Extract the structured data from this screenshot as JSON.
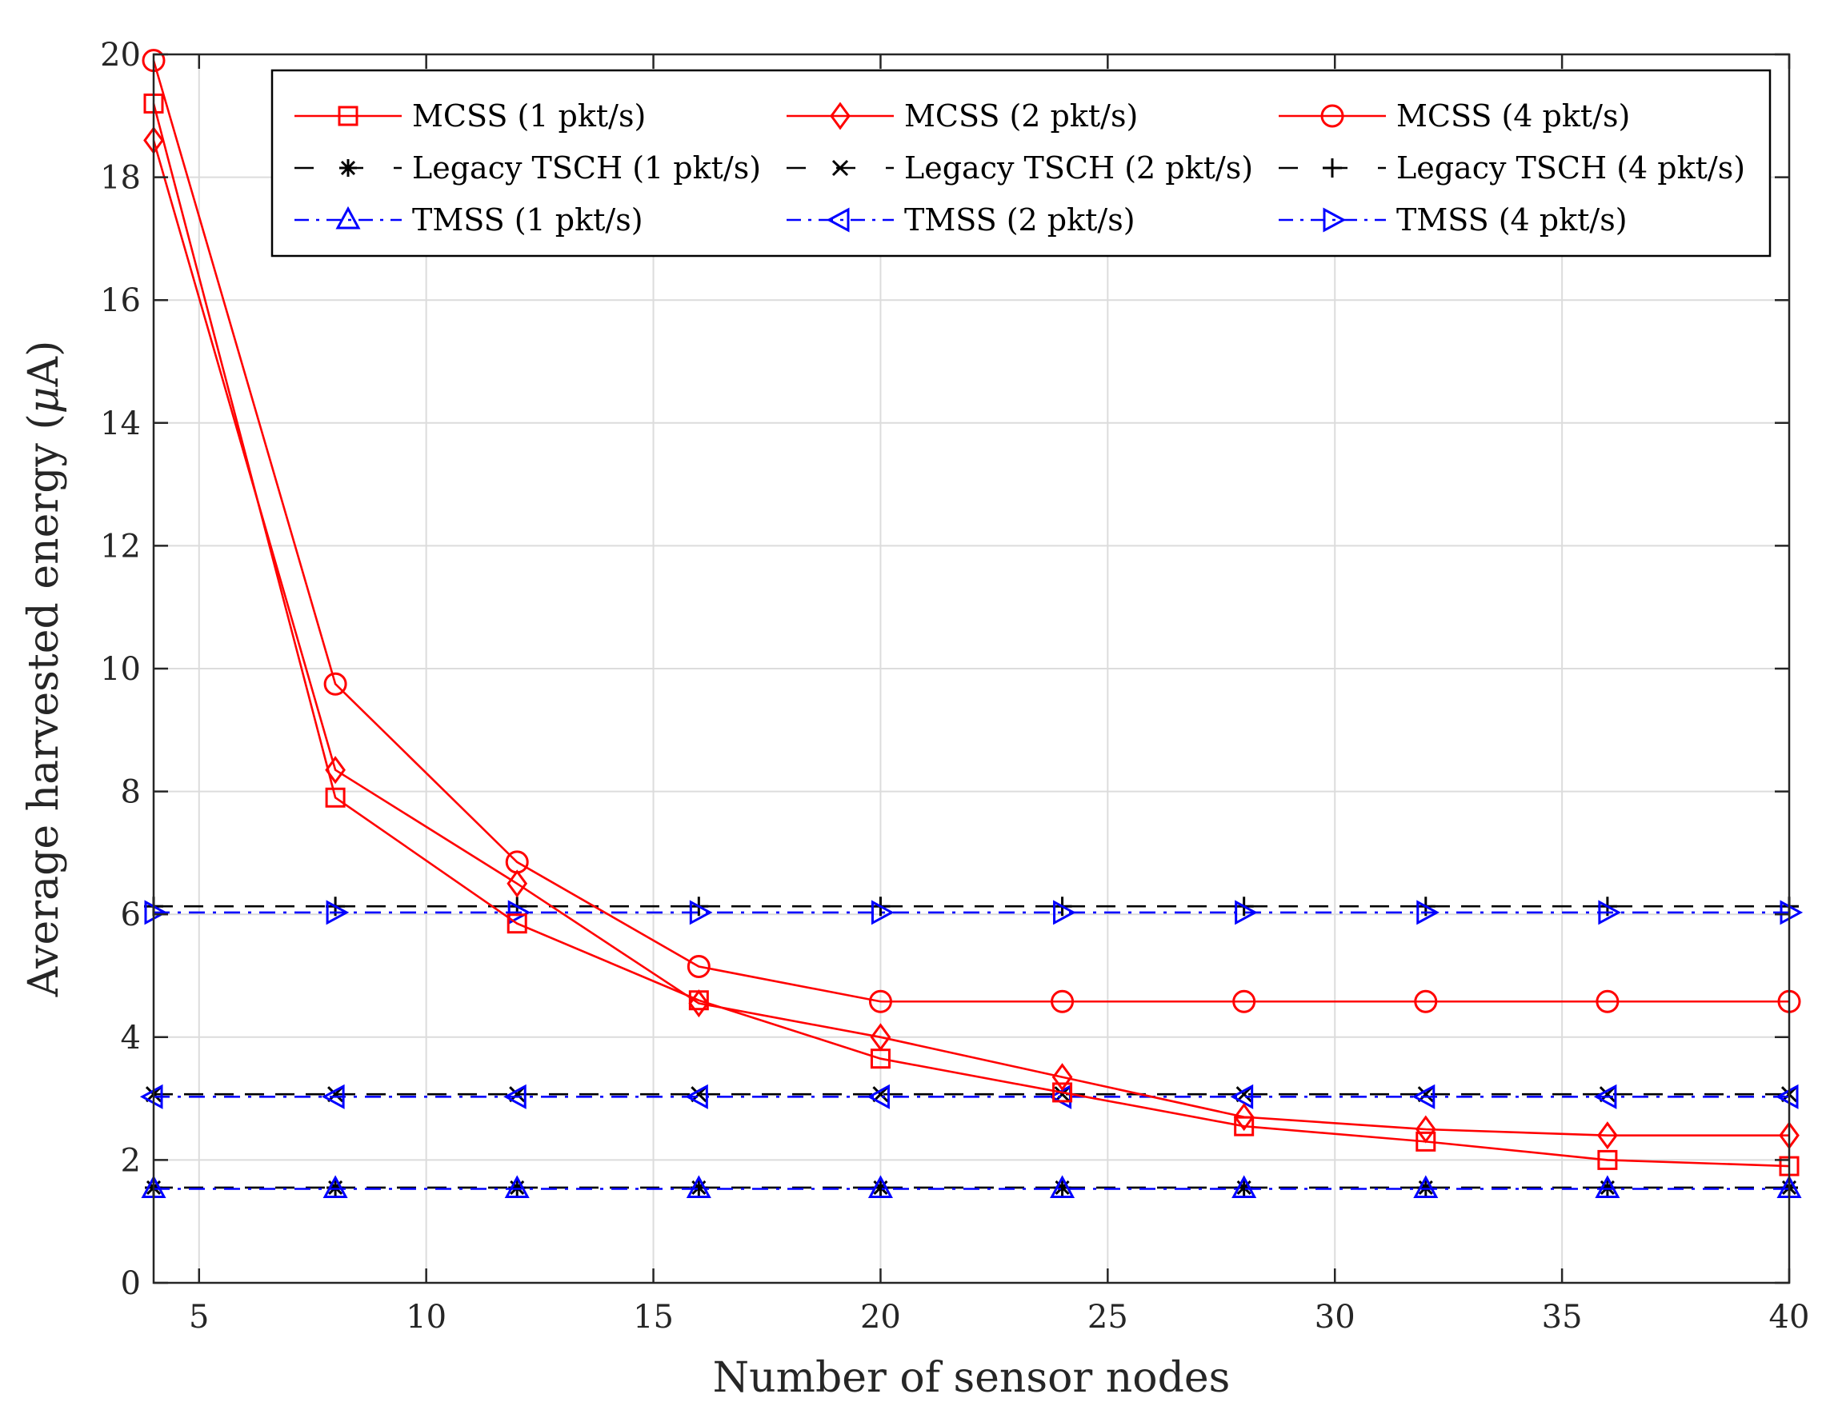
{
  "chart_data": {
    "type": "line",
    "xlabel": "Number of sensor nodes",
    "ylabel_prefix": "Average harvested energy (",
    "ylabel_mu": "μ",
    "ylabel_suffix": "A)",
    "xlim": [
      4,
      40
    ],
    "ylim": [
      0,
      20
    ],
    "xticks": [
      5,
      10,
      15,
      20,
      25,
      30,
      35,
      40
    ],
    "yticks": [
      0,
      2,
      4,
      6,
      8,
      10,
      12,
      14,
      16,
      18,
      20
    ],
    "grid": true,
    "legend_position": "top-right",
    "x": [
      4,
      8,
      12,
      16,
      20,
      24,
      28,
      32,
      36,
      40
    ],
    "series": [
      {
        "name": "MCSS (1 pkt/s)",
        "color": "#ff0000",
        "line": "solid",
        "marker": "square",
        "values": [
          19.2,
          7.9,
          5.85,
          4.6,
          3.65,
          3.1,
          2.55,
          2.3,
          2.0,
          1.9
        ]
      },
      {
        "name": "MCSS (2 pkt/s)",
        "color": "#ff0000",
        "line": "solid",
        "marker": "diamond",
        "values": [
          18.6,
          8.35,
          6.5,
          4.55,
          4.0,
          3.35,
          2.7,
          2.5,
          2.4,
          2.4
        ]
      },
      {
        "name": "MCSS (4 pkt/s)",
        "color": "#ff0000",
        "line": "solid",
        "marker": "circle",
        "values": [
          19.9,
          9.75,
          6.85,
          5.15,
          4.58,
          4.58,
          4.58,
          4.58,
          4.58,
          4.58
        ]
      },
      {
        "name": "Legacy TSCH (1 pkt/s)",
        "color": "#000000",
        "line": "dashed",
        "marker": "asterisk",
        "values": [
          1.55,
          1.55,
          1.55,
          1.55,
          1.55,
          1.55,
          1.55,
          1.55,
          1.55,
          1.55
        ]
      },
      {
        "name": "Legacy TSCH (2 pkt/s)",
        "color": "#000000",
        "line": "dashed",
        "marker": "x",
        "values": [
          3.07,
          3.07,
          3.07,
          3.07,
          3.07,
          3.07,
          3.07,
          3.07,
          3.07,
          3.07
        ]
      },
      {
        "name": "Legacy TSCH (4 pkt/s)",
        "color": "#000000",
        "line": "dashed",
        "marker": "plus",
        "values": [
          6.13,
          6.13,
          6.13,
          6.13,
          6.13,
          6.13,
          6.13,
          6.13,
          6.13,
          6.13
        ]
      },
      {
        "name": "TMSS (1 pkt/s)",
        "color": "#0000ff",
        "line": "dashdot",
        "marker": "triangle-up",
        "values": [
          1.53,
          1.53,
          1.53,
          1.53,
          1.53,
          1.53,
          1.53,
          1.53,
          1.53,
          1.53
        ]
      },
      {
        "name": "TMSS (2 pkt/s)",
        "color": "#0000ff",
        "line": "dashdot",
        "marker": "triangle-left",
        "values": [
          3.03,
          3.03,
          3.03,
          3.03,
          3.03,
          3.03,
          3.03,
          3.03,
          3.03,
          3.03
        ]
      },
      {
        "name": "TMSS (4 pkt/s)",
        "color": "#0000ff",
        "line": "dashdot",
        "marker": "triangle-right",
        "values": [
          6.03,
          6.03,
          6.03,
          6.03,
          6.03,
          6.03,
          6.03,
          6.03,
          6.03,
          6.03
        ]
      }
    ]
  }
}
